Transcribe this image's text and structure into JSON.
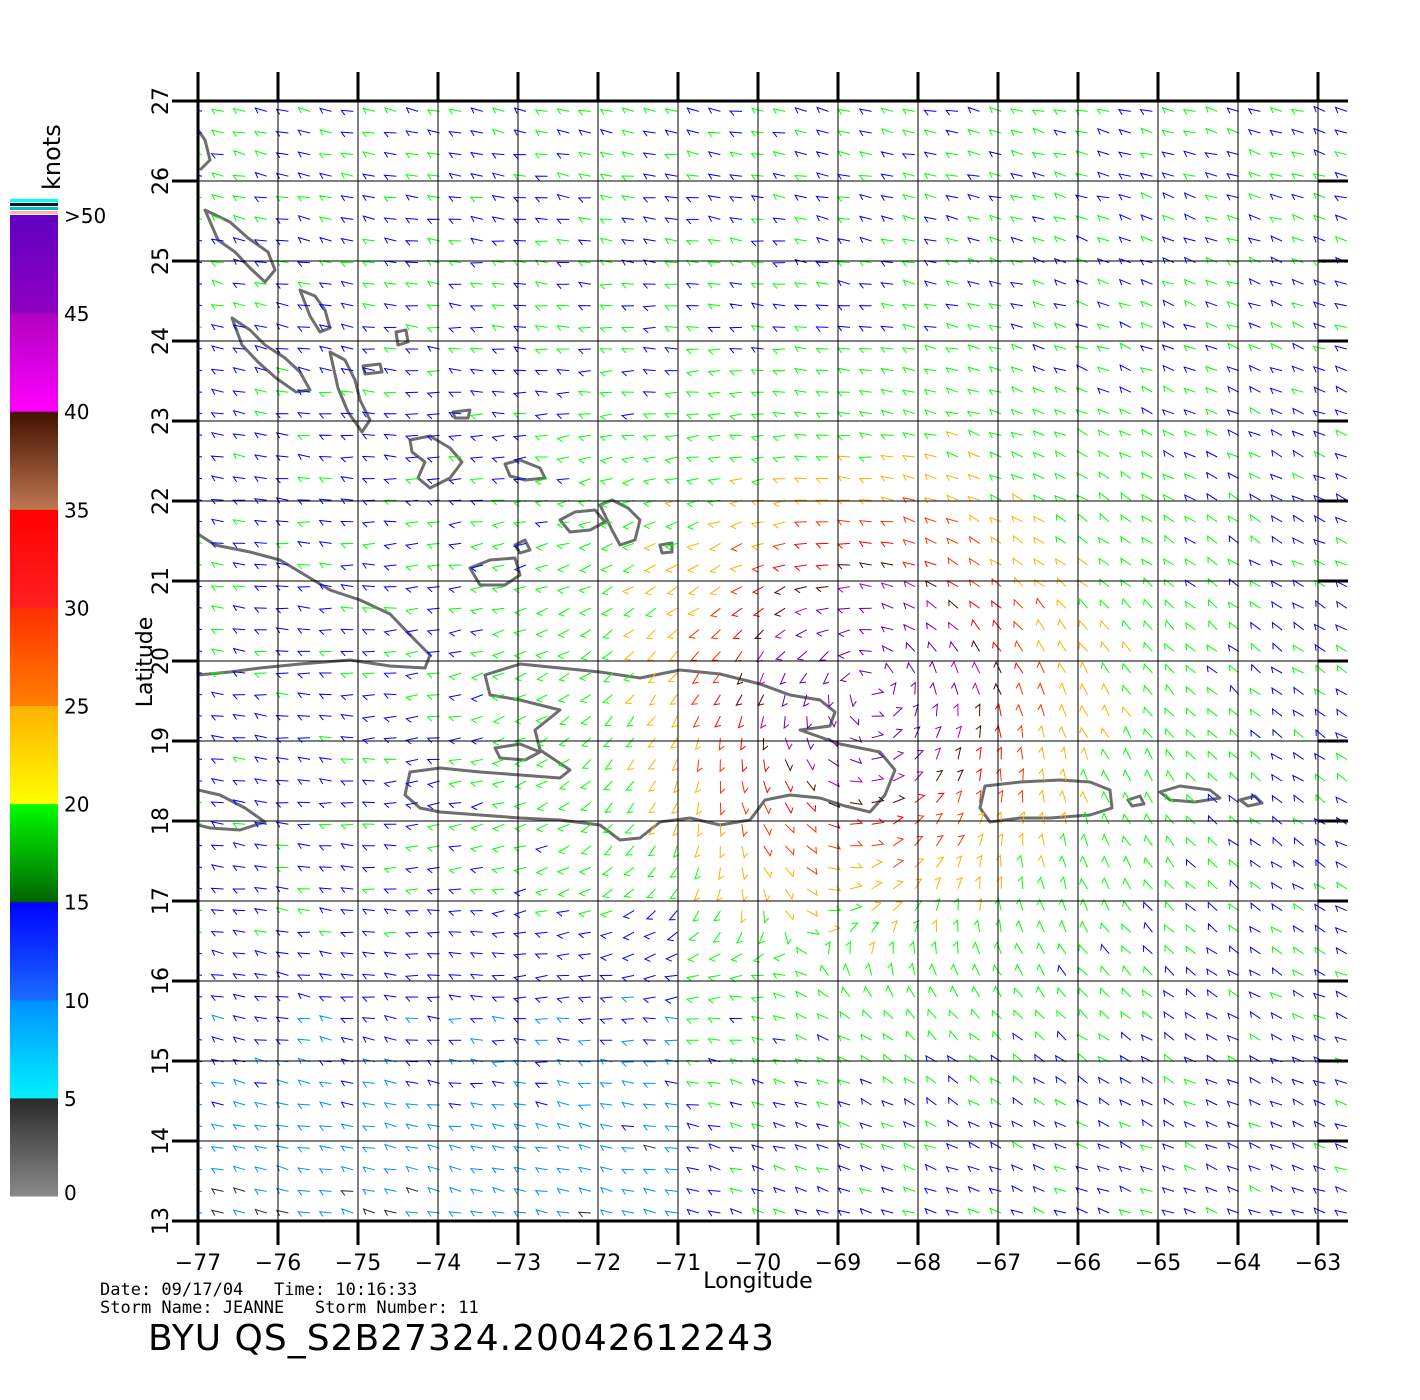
{
  "map": {
    "lon_range": [
      -77,
      -63
    ],
    "lat_range": [
      13,
      27
    ],
    "lon_ticks": [
      -77,
      -76,
      -75,
      -74,
      -73,
      -72,
      -71,
      -70,
      -69,
      -68,
      -67,
      -66,
      -65,
      -64,
      -63
    ],
    "lat_ticks": [
      13,
      14,
      15,
      16,
      17,
      18,
      19,
      20,
      21,
      22,
      23,
      24,
      25,
      26,
      27
    ],
    "xlabel": "Longitude",
    "ylabel": "Latitude",
    "grid": true,
    "land_outline_color": "#6e6e6e",
    "storm_center": {
      "lon": -68.6,
      "lat": 19.7
    }
  },
  "colorbar": {
    "unit": "knots",
    "tick_labels": [
      "0",
      "5",
      "10",
      "15",
      "20",
      "25",
      "30",
      "35",
      "40",
      "45",
      ">50"
    ],
    "bands": [
      {
        "from": 0,
        "to": 5,
        "colors": [
          "#8a8a8a",
          "#2a2a2a"
        ]
      },
      {
        "from": 5,
        "to": 10,
        "colors": [
          "#00f2ff",
          "#0090ff"
        ]
      },
      {
        "from": 10,
        "to": 15,
        "colors": [
          "#1a6cff",
          "#0000ff"
        ]
      },
      {
        "from": 15,
        "to": 20,
        "colors": [
          "#006400",
          "#00ff00"
        ]
      },
      {
        "from": 20,
        "to": 25,
        "colors": [
          "#ffff00",
          "#ffb000"
        ]
      },
      {
        "from": 25,
        "to": 30,
        "colors": [
          "#ff8000",
          "#ff3000"
        ]
      },
      {
        "from": 30,
        "to": 35,
        "colors": [
          "#ff2020",
          "#ff0000"
        ]
      },
      {
        "from": 35,
        "to": 40,
        "colors": [
          "#c07850",
          "#401000"
        ]
      },
      {
        "from": 40,
        "to": 45,
        "colors": [
          "#ff00ff",
          "#b000c0"
        ]
      },
      {
        "from": 45,
        "to": 50,
        "colors": [
          "#9000c0",
          "#6000c0"
        ]
      }
    ],
    "top_stripes": [
      "#ffb0b0",
      "#00c0c0",
      "#002020",
      "#00ffff"
    ]
  },
  "footer": {
    "date_line": "Date: 09/17/04   Time: 10:16:33",
    "storm_line": "Storm Name: JEANNE   Storm Number: 11",
    "product_id": "BYU QS_S2B27324.20042612243"
  }
}
